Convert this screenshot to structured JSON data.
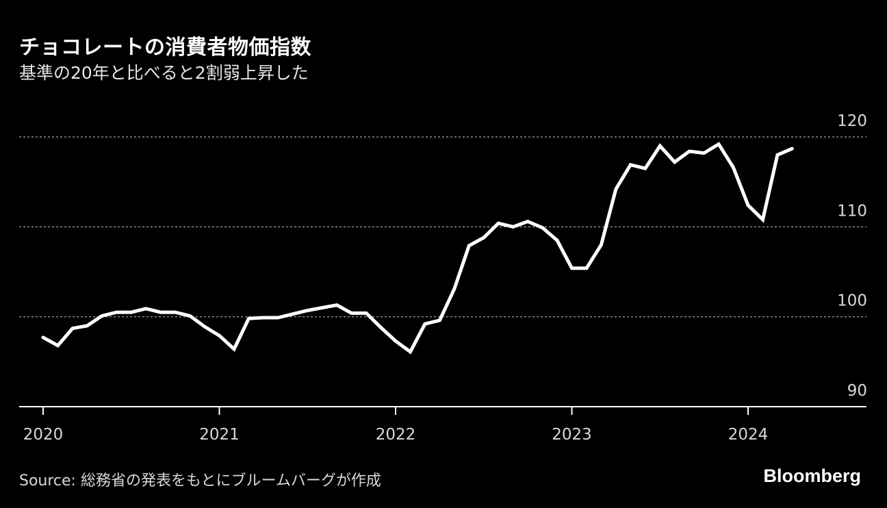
{
  "header": {
    "title": "チョコレートの消費者物価指数",
    "subtitle": "基準の20年と比べると2割弱上昇した"
  },
  "footer": {
    "source": "Source: 総務省の発表をもとにブルームバーグが作成",
    "brand": "Bloomberg"
  },
  "colors": {
    "background": "#000000",
    "line": "#ffffff",
    "grid": "#8c8c8c",
    "text": "#d9d9d9"
  },
  "chart_data": {
    "type": "line",
    "title": "チョコレートの消費者物価指数",
    "xlabel": "",
    "ylabel": "",
    "x_start": "2020-01",
    "x_tick_labels": [
      "2020",
      "2021",
      "2022",
      "2023",
      "2024"
    ],
    "y_ticks": [
      90,
      100,
      110,
      120
    ],
    "ylim": [
      90,
      120
    ],
    "grid": true,
    "series": [
      {
        "name": "",
        "x": [
          "2020-01",
          "2020-02",
          "2020-03",
          "2020-04",
          "2020-05",
          "2020-06",
          "2020-07",
          "2020-08",
          "2020-09",
          "2020-10",
          "2020-11",
          "2020-12",
          "2021-01",
          "2021-02",
          "2021-03",
          "2021-04",
          "2021-05",
          "2021-06",
          "2021-07",
          "2021-08",
          "2021-09",
          "2021-10",
          "2021-11",
          "2021-12",
          "2022-01",
          "2022-02",
          "2022-03",
          "2022-04",
          "2022-05",
          "2022-06",
          "2022-07",
          "2022-08",
          "2022-09",
          "2022-10",
          "2022-11",
          "2022-12",
          "2023-01",
          "2023-02",
          "2023-03",
          "2023-04",
          "2023-05",
          "2023-06",
          "2023-07",
          "2023-08",
          "2023-09",
          "2023-10",
          "2023-11",
          "2023-12",
          "2024-01",
          "2024-02",
          "2024-03",
          "2024-04"
        ],
        "values": [
          97.7,
          96.8,
          98.7,
          99.0,
          100.1,
          100.5,
          100.5,
          100.9,
          100.5,
          100.5,
          100.1,
          98.9,
          97.9,
          96.4,
          99.8,
          99.9,
          99.9,
          100.3,
          100.7,
          101.0,
          101.3,
          100.4,
          100.4,
          98.8,
          97.3,
          96.1,
          99.2,
          99.6,
          103.1,
          107.9,
          108.8,
          110.4,
          110.0,
          110.6,
          109.9,
          108.5,
          105.4,
          105.4,
          108.0,
          114.2,
          116.9,
          116.5,
          119.0,
          117.2,
          118.4,
          118.2,
          119.2,
          116.6,
          112.4,
          110.8,
          118.0,
          118.7
        ]
      }
    ]
  }
}
